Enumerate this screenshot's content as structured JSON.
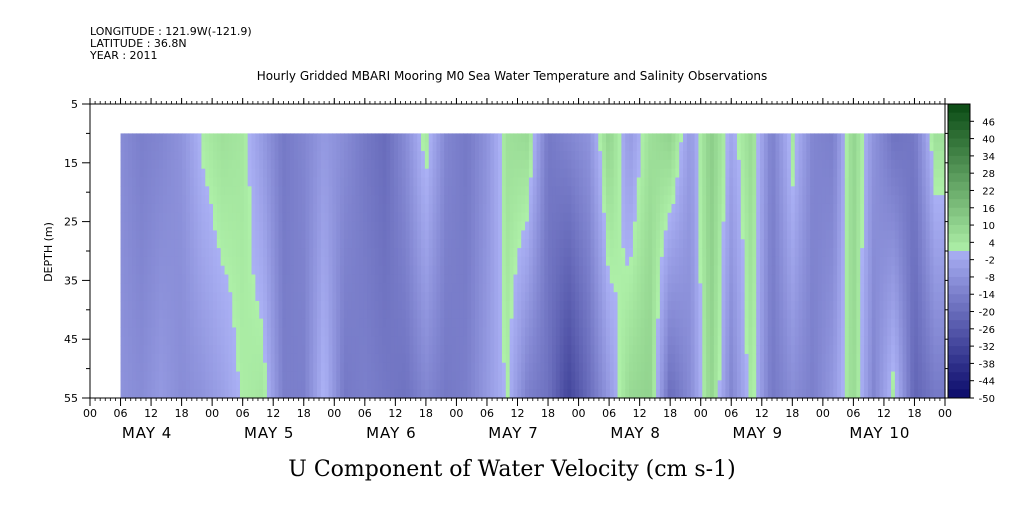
{
  "header": {
    "longitude": "LONGITUDE : 121.9W(-121.9)",
    "latitude": "LATITUDE : 36.8N",
    "year": "YEAR : 2011",
    "title": "Hourly Gridded MBARI Mooring M0 Sea Water Temperature and Salinity Observations"
  },
  "chart_data": {
    "type": "heatmap",
    "title": "Hourly Gridded MBARI Mooring M0 Sea Water Temperature and Salinity Observations",
    "xlabel": "U Component of Water Velocity (cm s-1)",
    "ylabel": "DEPTH (m)",
    "x_range_hours": [
      0,
      168
    ],
    "data_x_range_hours": [
      6,
      166
    ],
    "ylim": [
      5,
      55
    ],
    "y_inverted": true,
    "data_depth_range": [
      10,
      55
    ],
    "y_ticks": [
      "5",
      "15",
      "25",
      "35",
      "45",
      "55"
    ],
    "x_hour_ticks": [
      "00",
      "06",
      "12",
      "18",
      "00",
      "06",
      "12",
      "18",
      "00",
      "06",
      "12",
      "18",
      "00",
      "06",
      "12",
      "18",
      "00",
      "06",
      "12",
      "18",
      "00",
      "06",
      "12",
      "18",
      "00",
      "06",
      "12",
      "18",
      "00"
    ],
    "day_labels": [
      {
        "label": "MAY  4",
        "hour": 12
      },
      {
        "label": "MAY  5",
        "hour": 36
      },
      {
        "label": "MAY  6",
        "hour": 60
      },
      {
        "label": "MAY  7",
        "hour": 84
      },
      {
        "label": "MAY  8",
        "hour": 108
      },
      {
        "label": "MAY  9",
        "hour": 132
      },
      {
        "label": "MAY 10",
        "hour": 156
      }
    ],
    "colorbar": {
      "labels": [
        "46",
        "40",
        "34",
        "28",
        "22",
        "16",
        "10",
        "4",
        "-2",
        "-8",
        "-14",
        "-20",
        "-26",
        "-32",
        "-38",
        "-44",
        "-50"
      ],
      "level_min": -50,
      "level_max": 52,
      "step": 3,
      "low_color": "#0a0a6a",
      "mid_low_color": "#aab0f4",
      "mid_high_color": "#aef0a8",
      "high_color": "#0a4a14"
    },
    "field_columns": [
      {
        "hour": 6,
        "top": -10,
        "bottom": -8
      },
      {
        "hour": 10,
        "top": -14,
        "bottom": -10
      },
      {
        "hour": 14,
        "top": -12,
        "bottom": -6
      },
      {
        "hour": 18,
        "top": -8,
        "bottom": -10
      },
      {
        "hour": 22,
        "top": 2,
        "bottom": -8
      },
      {
        "hour": 26,
        "top": 6,
        "bottom": -4
      },
      {
        "hour": 30,
        "top": 4,
        "bottom": 2
      },
      {
        "hour": 34,
        "top": -6,
        "bottom": 4
      },
      {
        "hour": 38,
        "top": -16,
        "bottom": -14
      },
      {
        "hour": 42,
        "top": -12,
        "bottom": -14
      },
      {
        "hour": 46,
        "top": -6,
        "bottom": 2
      },
      {
        "hour": 50,
        "top": -10,
        "bottom": -16
      },
      {
        "hour": 54,
        "top": -16,
        "bottom": -14
      },
      {
        "hour": 58,
        "top": -20,
        "bottom": -16
      },
      {
        "hour": 62,
        "top": -10,
        "bottom": -18
      },
      {
        "hour": 66,
        "top": 4,
        "bottom": -12
      },
      {
        "hour": 70,
        "top": -12,
        "bottom": -16
      },
      {
        "hour": 74,
        "top": -16,
        "bottom": -14
      },
      {
        "hour": 78,
        "top": -8,
        "bottom": -6
      },
      {
        "hour": 82,
        "top": 6,
        "bottom": 2
      },
      {
        "hour": 86,
        "top": 8,
        "bottom": -14
      },
      {
        "hour": 90,
        "top": -16,
        "bottom": -18
      },
      {
        "hour": 94,
        "top": -12,
        "bottom": -32
      },
      {
        "hour": 98,
        "top": -8,
        "bottom": -20
      },
      {
        "hour": 102,
        "top": 10,
        "bottom": -6
      },
      {
        "hour": 106,
        "top": -6,
        "bottom": 8
      },
      {
        "hour": 110,
        "top": 6,
        "bottom": 10
      },
      {
        "hour": 114,
        "top": 10,
        "bottom": -20
      },
      {
        "hour": 118,
        "top": -6,
        "bottom": -10
      },
      {
        "hour": 122,
        "top": 12,
        "bottom": 10
      },
      {
        "hour": 126,
        "top": -2,
        "bottom": -12
      },
      {
        "hour": 130,
        "top": 8,
        "bottom": 4
      },
      {
        "hour": 134,
        "top": -14,
        "bottom": -16
      },
      {
        "hour": 138,
        "top": 4,
        "bottom": -10
      },
      {
        "hour": 142,
        "top": -12,
        "bottom": -14
      },
      {
        "hour": 146,
        "top": -14,
        "bottom": -6
      },
      {
        "hour": 150,
        "top": 10,
        "bottom": 8
      },
      {
        "hour": 154,
        "top": -8,
        "bottom": -12
      },
      {
        "hour": 158,
        "top": -18,
        "bottom": 4
      },
      {
        "hour": 162,
        "top": -16,
        "bottom": -22
      },
      {
        "hour": 166,
        "top": 6,
        "bottom": -16
      }
    ]
  }
}
